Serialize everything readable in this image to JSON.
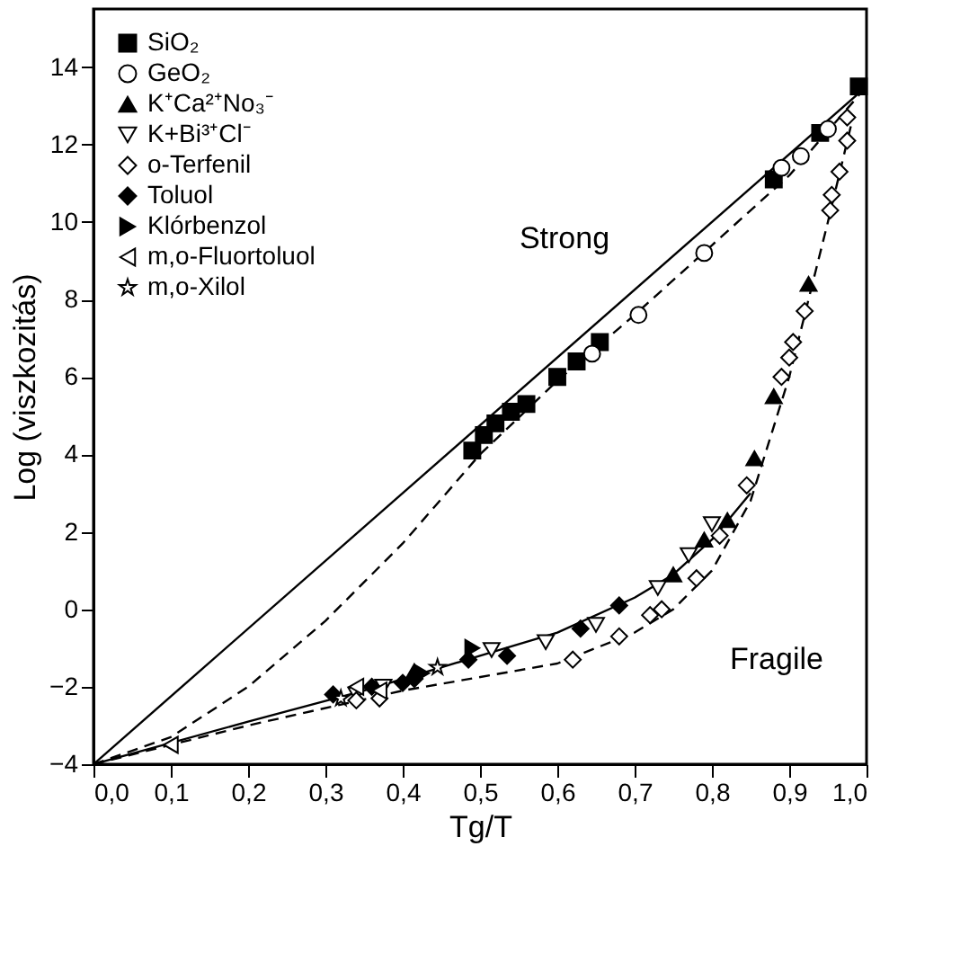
{
  "chart_data": {
    "type": "scatter",
    "xlabel": "Tg/T",
    "ylabel": "Log (viszkozitás)",
    "xlim": [
      0,
      1
    ],
    "ylim": [
      -4,
      15.5
    ],
    "xticks": [
      {
        "value": 0,
        "label": "0,0"
      },
      {
        "value": 0.1,
        "label": "0,1"
      },
      {
        "value": 0.2,
        "label": "0,2"
      },
      {
        "value": 0.3,
        "label": "0,3"
      },
      {
        "value": 0.4,
        "label": "0,4"
      },
      {
        "value": 0.5,
        "label": "0,5"
      },
      {
        "value": 0.6,
        "label": "0,6"
      },
      {
        "value": 0.7,
        "label": "0,7"
      },
      {
        "value": 0.8,
        "label": "0,8"
      },
      {
        "value": 0.9,
        "label": "0,9"
      },
      {
        "value": 1,
        "label": "1,0"
      }
    ],
    "yticks": [
      -4,
      -2,
      0,
      2,
      4,
      6,
      8,
      10,
      12,
      14
    ],
    "grid": false,
    "legend": "top left",
    "annotations": [
      "Strong",
      "Fragile"
    ],
    "series": [
      {
        "name": "SiO₂",
        "color": "#000000",
        "marker": "square",
        "x": [
          0.49,
          0.505,
          0.52,
          0.54,
          0.56,
          0.6,
          0.625,
          0.655,
          0.88,
          0.94,
          0.99
        ],
        "values": [
          4.1,
          4.5,
          4.8,
          5.1,
          5.3,
          6.0,
          6.4,
          6.9,
          11.1,
          12.3,
          13.5
        ]
      },
      {
        "name": "GeO₂",
        "color": "#000000",
        "marker": "circle open",
        "x": [
          0.645,
          0.705,
          0.79,
          0.89,
          0.915,
          0.95
        ],
        "values": [
          6.6,
          7.6,
          9.2,
          11.4,
          11.7,
          12.4
        ]
      },
      {
        "name": "K⁺Ca²⁺No₃⁻",
        "color": "#000000",
        "marker": "triangle",
        "x": [
          0.415,
          0.75,
          0.79,
          0.82,
          0.855,
          0.88,
          0.925
        ],
        "values": [
          -1.6,
          0.9,
          1.8,
          2.3,
          3.9,
          5.5,
          8.4
        ]
      },
      {
        "name": "K+Bi³⁺Cl⁻",
        "color": "#000000",
        "marker": "triangle-down open",
        "x": [
          0.34,
          0.375,
          0.515,
          0.585,
          0.65,
          0.73,
          0.77,
          0.8
        ],
        "values": [
          -2.2,
          -2.0,
          -1.05,
          -0.85,
          -0.4,
          0.55,
          1.4,
          2.2
        ]
      },
      {
        "name": "o-Terfenil",
        "color": "#000000",
        "marker": "diamond open",
        "x": [
          0.34,
          0.37,
          0.62,
          0.68,
          0.72,
          0.735,
          0.78,
          0.81,
          0.845,
          0.89,
          0.9,
          0.905,
          0.92,
          0.953,
          0.955,
          0.965,
          0.975,
          0.975
        ],
        "values": [
          -2.35,
          -2.3,
          -1.3,
          -0.7,
          -0.15,
          0.0,
          0.8,
          1.9,
          3.2,
          6.0,
          6.5,
          6.9,
          7.7,
          10.3,
          10.7,
          11.3,
          12.1,
          12.7
        ]
      },
      {
        "name": "Toluol",
        "color": "#000000",
        "marker": "diamond",
        "x": [
          0.31,
          0.36,
          0.4,
          0.415,
          0.485,
          0.535,
          0.63,
          0.68
        ],
        "values": [
          -2.2,
          -2.0,
          -1.9,
          -1.8,
          -1.3,
          -1.2,
          -0.5,
          0.1
        ]
      },
      {
        "name": "Klórbenzol",
        "color": "#000000",
        "marker": "triangle-right",
        "x": [
          0.425,
          0.49
        ],
        "values": [
          -1.65,
          -1.0
        ]
      },
      {
        "name": "m,o-Fluortoluol",
        "color": "#000000",
        "marker": "triangle-left open",
        "x": [
          0.1,
          0.34,
          0.37
        ],
        "values": [
          -3.5,
          -2.0,
          -2.1
        ]
      },
      {
        "name": "m,o-Xilol",
        "color": "#000000",
        "marker": "star open",
        "x": [
          0.32,
          0.445
        ],
        "values": [
          -2.3,
          -1.5
        ]
      },
      {
        "type": "line",
        "color": "#000000",
        "line_style": "solid",
        "marker": "none",
        "x": [
          0,
          1
        ],
        "values": [
          -4,
          13.5
        ]
      },
      {
        "type": "line",
        "color": "#000000",
        "line_style": "dashed",
        "marker": "none",
        "x": [
          0,
          0.1,
          0.2,
          0.3,
          0.4,
          0.5,
          0.6,
          0.7,
          0.8,
          0.9,
          1.0
        ],
        "values": [
          -4,
          -3.3,
          -2.0,
          -0.3,
          1.7,
          4.0,
          5.9,
          7.6,
          9.4,
          11.2,
          13.5
        ]
      },
      {
        "type": "line",
        "color": "#000000",
        "line_style": "solid",
        "marker": "none",
        "x": [
          0,
          0.2,
          0.35,
          0.5,
          0.6,
          0.7,
          0.75,
          0.8,
          0.85
        ],
        "values": [
          -4,
          -2.9,
          -2.1,
          -1.2,
          -0.6,
          0.3,
          0.9,
          1.8,
          3.0
        ]
      },
      {
        "type": "line",
        "color": "#000000",
        "line_style": "dashed",
        "marker": "none",
        "x": [
          0,
          0.2,
          0.4,
          0.6,
          0.7,
          0.75,
          0.8,
          0.85,
          0.9,
          0.95,
          0.98
        ],
        "values": [
          -4,
          -3.0,
          -2.1,
          -1.4,
          -0.6,
          0.0,
          1.0,
          2.8,
          6.0,
          10.0,
          12.5
        ]
      }
    ]
  }
}
